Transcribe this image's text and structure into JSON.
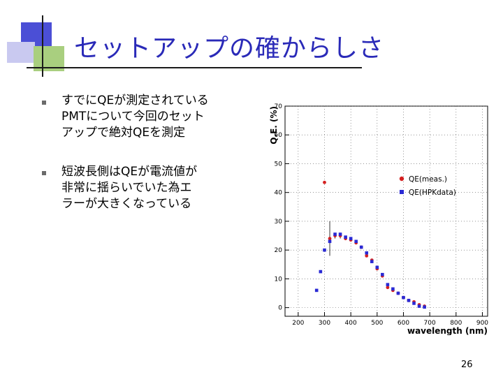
{
  "slide": {
    "title": "セットアップの確からしさ",
    "bullets": [
      {
        "lines": [
          "すでにQEが測定されている",
          "PMTについて今回のセット",
          "アップで絶対QEを測定"
        ]
      },
      {
        "lines": [
          "短波長側はQEが電流値が",
          "非常に揺らいでいた為エ",
          "ラーが大きくなっている"
        ]
      }
    ],
    "page_number": "26"
  },
  "chart_data": {
    "type": "scatter",
    "xlabel": "wavelength (nm)",
    "ylabel": "Q.E. (%)",
    "xlim": [
      150,
      920
    ],
    "ylim": [
      -3,
      70
    ],
    "x_ticks": [
      200,
      300,
      400,
      500,
      600,
      700,
      800,
      900
    ],
    "y_ticks": [
      0,
      10,
      20,
      30,
      40,
      50,
      60,
      70
    ],
    "grid": true,
    "legend_position": "right",
    "series": [
      {
        "name": "QE(meas.)",
        "color": "#d42020",
        "marker": "circle",
        "points": [
          {
            "x": 300,
            "y": 43.5,
            "err": 0
          },
          {
            "x": 320,
            "y": 24,
            "err": 6
          },
          {
            "x": 340,
            "y": 25,
            "err": 1
          },
          {
            "x": 360,
            "y": 25,
            "err": 1
          },
          {
            "x": 380,
            "y": 24,
            "err": 0
          },
          {
            "x": 400,
            "y": 23.5,
            "err": 0
          },
          {
            "x": 420,
            "y": 22.5,
            "err": 0
          },
          {
            "x": 440,
            "y": 21,
            "err": 0
          },
          {
            "x": 460,
            "y": 18,
            "err": 0
          },
          {
            "x": 480,
            "y": 16.5,
            "err": 0
          },
          {
            "x": 500,
            "y": 13.5,
            "err": 0
          },
          {
            "x": 520,
            "y": 11,
            "err": 0
          },
          {
            "x": 540,
            "y": 7,
            "err": 0
          },
          {
            "x": 560,
            "y": 6,
            "err": 0
          },
          {
            "x": 580,
            "y": 5,
            "err": 0
          },
          {
            "x": 600,
            "y": 3.5,
            "err": 0
          },
          {
            "x": 620,
            "y": 2.5,
            "err": 0
          },
          {
            "x": 640,
            "y": 2,
            "err": 0
          },
          {
            "x": 660,
            "y": 1,
            "err": 0
          },
          {
            "x": 680,
            "y": 0.5,
            "err": 0
          }
        ]
      },
      {
        "name": "QE(HPKdata)",
        "color": "#2a2ad4",
        "marker": "square",
        "points": [
          {
            "x": 270,
            "y": 6
          },
          {
            "x": 285,
            "y": 12.5
          },
          {
            "x": 300,
            "y": 20
          },
          {
            "x": 320,
            "y": 23
          },
          {
            "x": 340,
            "y": 25.5
          },
          {
            "x": 360,
            "y": 25.5
          },
          {
            "x": 380,
            "y": 24.5
          },
          {
            "x": 400,
            "y": 24
          },
          {
            "x": 420,
            "y": 23
          },
          {
            "x": 440,
            "y": 21
          },
          {
            "x": 460,
            "y": 19
          },
          {
            "x": 480,
            "y": 16
          },
          {
            "x": 500,
            "y": 14
          },
          {
            "x": 520,
            "y": 11.5
          },
          {
            "x": 540,
            "y": 8
          },
          {
            "x": 560,
            "y": 6.5
          },
          {
            "x": 580,
            "y": 5
          },
          {
            "x": 600,
            "y": 3.5
          },
          {
            "x": 620,
            "y": 2.5
          },
          {
            "x": 640,
            "y": 1.5
          },
          {
            "x": 660,
            "y": 0.5
          },
          {
            "x": 680,
            "y": 0.2
          }
        ]
      }
    ]
  }
}
